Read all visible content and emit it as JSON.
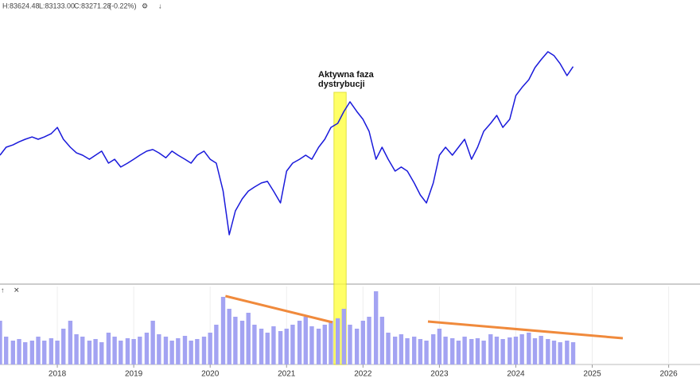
{
  "chart_data": {
    "type": "stock",
    "header": [
      "H:83624.48",
      "L:83133.00",
      "C:83271.28",
      "(-0.22%)"
    ],
    "annotation": [
      "Aktywna faza",
      "dystrybucji"
    ],
    "xlim": [
      2017.25,
      2026.41
    ],
    "xticks": [
      2018,
      2019,
      2020,
      2021,
      2022,
      2023,
      2024,
      2025,
      2026
    ],
    "ylim": [
      27650,
      100425
    ],
    "volume_ylim": [
      0,
      100
    ],
    "x": [
      2017.25,
      2017.33,
      2017.42,
      2017.5,
      2017.58,
      2017.67,
      2017.75,
      2017.83,
      2017.92,
      2018.0,
      2018.08,
      2018.17,
      2018.25,
      2018.33,
      2018.42,
      2018.5,
      2018.58,
      2018.67,
      2018.75,
      2018.83,
      2018.92,
      2019.0,
      2019.08,
      2019.17,
      2019.25,
      2019.33,
      2019.42,
      2019.5,
      2019.58,
      2019.67,
      2019.75,
      2019.83,
      2019.92,
      2020.0,
      2020.08,
      2020.17,
      2020.25,
      2020.33,
      2020.42,
      2020.5,
      2020.58,
      2020.67,
      2020.75,
      2020.83,
      2020.92,
      2021.0,
      2021.08,
      2021.17,
      2021.25,
      2021.33,
      2021.42,
      2021.5,
      2021.58,
      2021.67,
      2021.75,
      2021.83,
      2021.92,
      2022.0,
      2022.08,
      2022.17,
      2022.25,
      2022.33,
      2022.42,
      2022.5,
      2022.58,
      2022.67,
      2022.75,
      2022.83,
      2022.92,
      2023.0,
      2023.08,
      2023.17,
      2023.25,
      2023.33,
      2023.42,
      2023.5,
      2023.58,
      2023.67,
      2023.75,
      2023.83,
      2023.92,
      2024.0,
      2024.08,
      2024.17,
      2024.25,
      2024.33,
      2024.42,
      2024.5,
      2024.58,
      2024.67,
      2024.75
    ],
    "series": [
      {
        "name": "price",
        "color": "#1a1adb",
        "values": [
          60450,
          62500,
          63100,
          63900,
          64550,
          65150,
          64550,
          65150,
          66000,
          67600,
          64550,
          62500,
          61050,
          60450,
          59400,
          60450,
          61500,
          58400,
          59400,
          57400,
          58400,
          59400,
          60450,
          61500,
          61900,
          61050,
          59800,
          61500,
          60450,
          59400,
          58400,
          60450,
          61500,
          59400,
          58400,
          51200,
          39950,
          46100,
          49200,
          51200,
          52250,
          53300,
          53700,
          51200,
          48150,
          56350,
          58400,
          59400,
          60450,
          59400,
          62500,
          64550,
          67600,
          68650,
          71700,
          74200,
          71700,
          69700,
          66600,
          59400,
          62500,
          59400,
          56350,
          57400,
          56350,
          53300,
          50200,
          48150,
          53300,
          60450,
          62500,
          60450,
          62500,
          64550,
          59400,
          62500,
          66600,
          68650,
          70700,
          67600,
          69700,
          75800,
          77900,
          79900,
          83000,
          85050,
          87100,
          86100,
          84000,
          80950,
          83271
        ]
      },
      {
        "name": "volume",
        "color": "#a3a3f2",
        "values": [
          55,
          35,
          30,
          32,
          28,
          30,
          35,
          30,
          33,
          30,
          45,
          55,
          38,
          35,
          30,
          32,
          28,
          40,
          35,
          30,
          33,
          32,
          35,
          40,
          55,
          38,
          35,
          30,
          33,
          36,
          30,
          32,
          35,
          40,
          50,
          85,
          70,
          60,
          55,
          65,
          50,
          45,
          40,
          48,
          42,
          45,
          50,
          55,
          60,
          48,
          45,
          50,
          55,
          58,
          70,
          50,
          45,
          55,
          60,
          92,
          60,
          40,
          35,
          38,
          33,
          35,
          32,
          30,
          38,
          45,
          35,
          33,
          30,
          35,
          32,
          33,
          30,
          38,
          35,
          32,
          34,
          35,
          38,
          40,
          33,
          36,
          32,
          30,
          28,
          30,
          28
        ]
      }
    ],
    "highlight": {
      "x": [
        2021.62,
        2021.78
      ],
      "color": "#ffff33"
    },
    "trendlines": [
      {
        "color": "#f08a3c",
        "x": [
          2020.2,
          2021.6
        ],
        "y": [
          86,
          53
        ]
      },
      {
        "color": "#f08a3c",
        "x": [
          2022.85,
          2025.4
        ],
        "y": [
          54,
          33
        ]
      }
    ],
    "grid": true
  }
}
